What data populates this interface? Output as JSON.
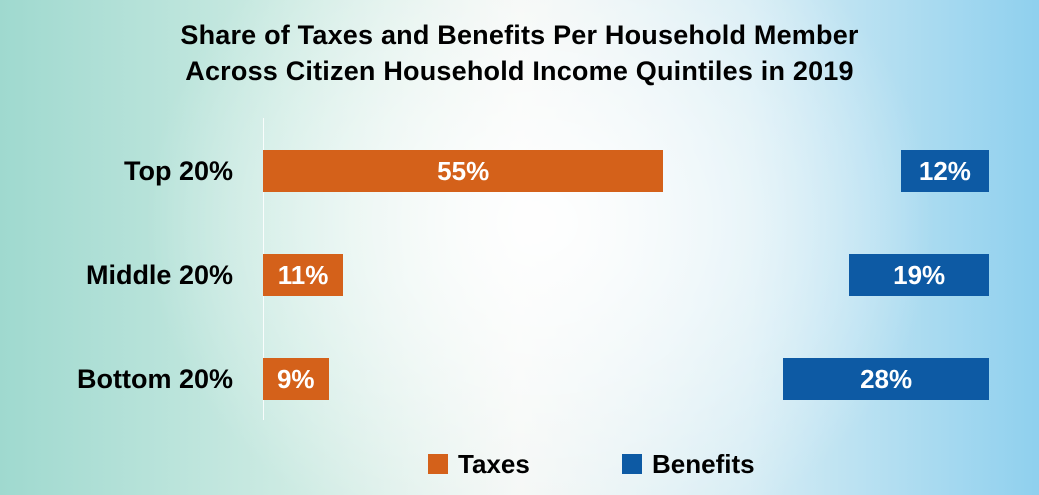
{
  "chart_data": {
    "type": "bar",
    "title": "Share of Taxes and Benefits Per Household Member",
    "subtitle": "Across Citizen Household Income Quintiles in 2019",
    "categories": [
      "Top 20%",
      "Middle 20%",
      "Bottom 20%"
    ],
    "series": [
      {
        "name": "Taxes",
        "color": "#d4611a",
        "values": [
          55,
          11,
          9
        ],
        "labels": [
          "55%",
          "11%",
          "9%"
        ]
      },
      {
        "name": "Benefits",
        "color": "#0d5aa4",
        "values": [
          12,
          19,
          28
        ],
        "labels": [
          "12%",
          "19%",
          "28%"
        ]
      }
    ],
    "grid": false,
    "legend": "bottom"
  }
}
